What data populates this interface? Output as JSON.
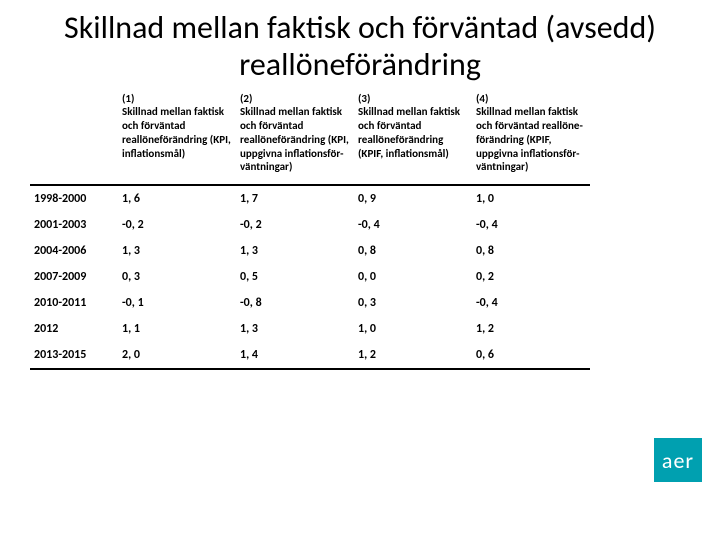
{
  "title": "Skillnad mellan faktisk och förväntad (avsedd) reallöneförändring",
  "logo": {
    "text": "aer",
    "bg": "#00a0b0",
    "fg": "#ffffff"
  },
  "table": {
    "columns": [
      {
        "num": "",
        "desc": ""
      },
      {
        "num": "(1)",
        "desc": "Skillnad mellan faktisk och förväntad reallöneförändring (KPI, inflationsmål)"
      },
      {
        "num": "(2)",
        "desc": "Skillnad mellan faktisk och förväntad reallöneförändring (KPI, uppgivna inflationsför-väntningar)"
      },
      {
        "num": "(3)",
        "desc": "Skillnad mellan faktisk och förväntad reallöneförändring (KPIF, inflationsmål)"
      },
      {
        "num": "(4)",
        "desc": "Skillnad mellan faktisk och förväntad reallöne-förändring (KPIF, uppgivna inflationsför-väntningar)"
      }
    ],
    "rows": [
      {
        "period": "1998-2000",
        "v": [
          "1, 6",
          "1, 7",
          "0, 9",
          "1, 0"
        ]
      },
      {
        "period": "2001-2003",
        "v": [
          "-0, 2",
          "-0, 2",
          "-0, 4",
          "-0, 4"
        ]
      },
      {
        "period": "2004-2006",
        "v": [
          "1, 3",
          "1, 3",
          "0, 8",
          "0, 8"
        ]
      },
      {
        "period": "2007-2009",
        "v": [
          "0, 3",
          "0, 5",
          "0, 0",
          "0, 2"
        ]
      },
      {
        "period": "2010-2011",
        "v": [
          "-0, 1",
          "-0, 8",
          "0, 3",
          "-0, 4"
        ]
      },
      {
        "period": "2012",
        "v": [
          "1, 1",
          "1, 3",
          "1, 0",
          "1, 2"
        ]
      },
      {
        "period": "2013-2015",
        "v": [
          "2, 0",
          "1, 4",
          "1, 2",
          "0, 6"
        ]
      }
    ]
  }
}
